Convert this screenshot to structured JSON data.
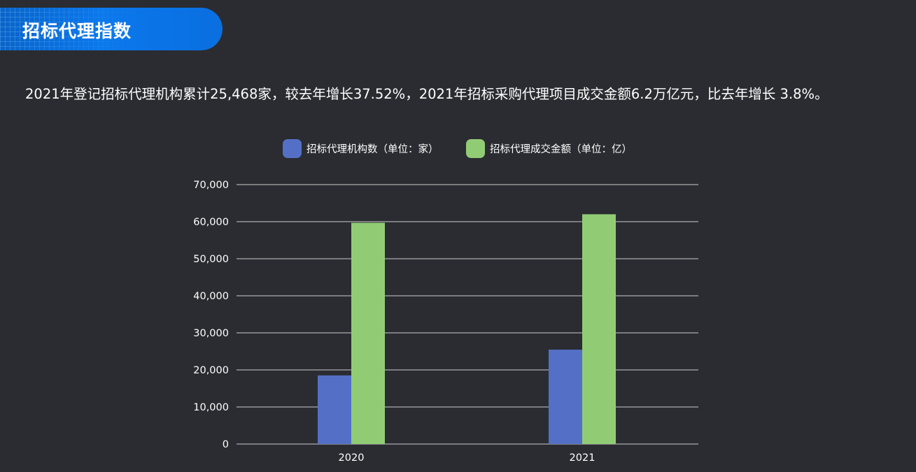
{
  "header": {
    "title": "招标代理指数"
  },
  "summary": "2021年登记招标代理机构累计25,468家，较去年增长37.52%，2021年招标采购代理项目成交金额6.2万亿元，比去年增长 3.8%。",
  "colors": {
    "background": "#2a2c31",
    "series_agencies": "#5470c6",
    "series_amount": "#91cc75",
    "gridline": "#cccccc"
  },
  "chart_data": {
    "type": "bar",
    "categories": [
      "2020",
      "2021"
    ],
    "series": [
      {
        "name": "招标代理机构数（单位：家）",
        "values": [
          18520,
          25468
        ]
      },
      {
        "name": "招标代理成交金额（单位：亿）",
        "values": [
          59700,
          62000
        ]
      }
    ],
    "yticks": [
      "0",
      "10,000",
      "20,000",
      "30,000",
      "40,000",
      "50,000",
      "60,000",
      "70,000"
    ],
    "ylim": [
      0,
      70000
    ],
    "grid": true,
    "legend": "top-center"
  }
}
